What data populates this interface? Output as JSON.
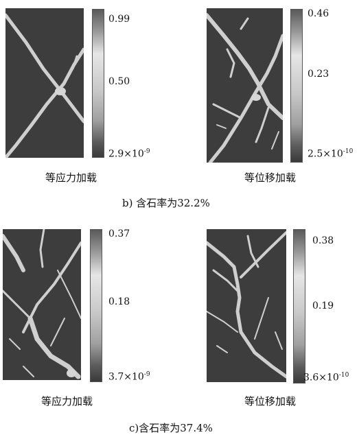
{
  "figure": {
    "row_b": {
      "caption": "b) 含石率为32.2%",
      "left": {
        "label": "等应力加载",
        "colorbar": {
          "max": "0.99",
          "mid": "0.50",
          "min": "2.9×10",
          "min_exp": "-9"
        }
      },
      "right": {
        "label": "等位移加载",
        "colorbar": {
          "max": "0.46",
          "mid": "0.23",
          "min": "2.5×10",
          "min_exp": "-10"
        }
      }
    },
    "row_c": {
      "caption": "c)含石率为37.4%",
      "left": {
        "label": "等应力加载",
        "colorbar": {
          "max": "0.37",
          "mid": "0.18",
          "min": "3.7×10",
          "min_exp": "-9"
        }
      },
      "right": {
        "label": "等位移加载",
        "colorbar": {
          "max": "0.38",
          "mid": "0.19",
          "min": "3.6×10",
          "min_exp": "-10"
        }
      }
    },
    "colors": {
      "background": "#3d3d3d",
      "crack": "#d2d2d2",
      "colorbar_dark": "#3a3a3a",
      "colorbar_light": "#e6e6e6"
    }
  }
}
